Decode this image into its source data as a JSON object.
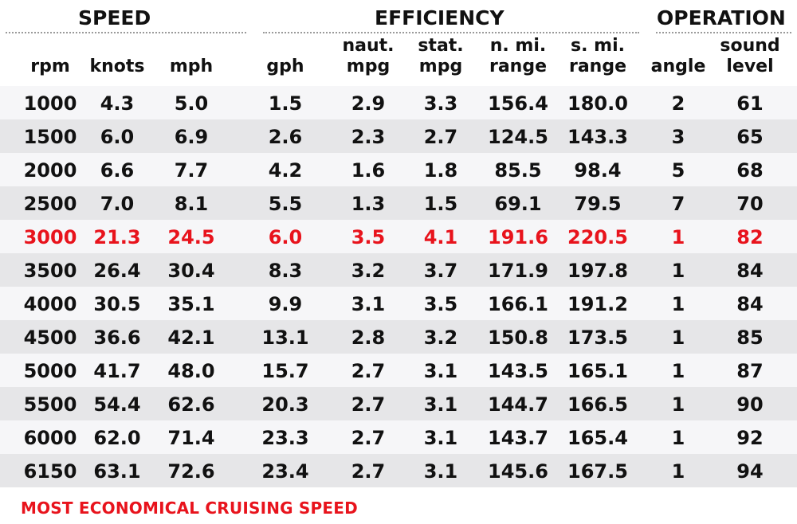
{
  "chart_data": {
    "type": "table",
    "groups": [
      {
        "name": "SPEED",
        "columns": [
          "rpm",
          "knots",
          "mph"
        ]
      },
      {
        "name": "EFFICIENCY",
        "columns": [
          "gph",
          "naut. mpg",
          "stat. mpg",
          "n. mi. range",
          "s. mi. range"
        ]
      },
      {
        "name": "OPERATION",
        "columns": [
          "angle",
          "sound level"
        ]
      }
    ],
    "columns": [
      "rpm",
      "knots",
      "mph",
      "gph",
      "naut. mpg",
      "stat. mpg",
      "n. mi. range",
      "s. mi. range",
      "angle",
      "sound level"
    ],
    "rows": [
      [
        "1000",
        "4.3",
        "5.0",
        "1.5",
        "2.9",
        "3.3",
        "156.4",
        "180.0",
        "2",
        "61"
      ],
      [
        "1500",
        "6.0",
        "6.9",
        "2.6",
        "2.3",
        "2.7",
        "124.5",
        "143.3",
        "3",
        "65"
      ],
      [
        "2000",
        "6.6",
        "7.7",
        "4.2",
        "1.6",
        "1.8",
        "85.5",
        "98.4",
        "5",
        "68"
      ],
      [
        "2500",
        "7.0",
        "8.1",
        "5.5",
        "1.3",
        "1.5",
        "69.1",
        "79.5",
        "7",
        "70"
      ],
      [
        "3000",
        "21.3",
        "24.5",
        "6.0",
        "3.5",
        "4.1",
        "191.6",
        "220.5",
        "1",
        "82"
      ],
      [
        "3500",
        "26.4",
        "30.4",
        "8.3",
        "3.2",
        "3.7",
        "171.9",
        "197.8",
        "1",
        "84"
      ],
      [
        "4000",
        "30.5",
        "35.1",
        "9.9",
        "3.1",
        "3.5",
        "166.1",
        "191.2",
        "1",
        "84"
      ],
      [
        "4500",
        "36.6",
        "42.1",
        "13.1",
        "2.8",
        "3.2",
        "150.8",
        "173.5",
        "1",
        "85"
      ],
      [
        "5000",
        "41.7",
        "48.0",
        "15.7",
        "2.7",
        "3.1",
        "143.5",
        "165.1",
        "1",
        "87"
      ],
      [
        "5500",
        "54.4",
        "62.6",
        "20.3",
        "2.7",
        "3.1",
        "144.7",
        "166.5",
        "1",
        "90"
      ],
      [
        "6000",
        "62.0",
        "71.4",
        "23.3",
        "2.7",
        "3.1",
        "143.7",
        "165.4",
        "1",
        "92"
      ],
      [
        "6150",
        "63.1",
        "72.6",
        "23.4",
        "2.7",
        "3.1",
        "145.6",
        "167.5",
        "1",
        "94"
      ]
    ],
    "highlight_row_index": 4,
    "highlight_color": "#e8131c",
    "footnote": "MOST ECONOMICAL CRUISING SPEED"
  },
  "headers": {
    "groups": {
      "speed": "SPEED",
      "efficiency": "EFFICIENCY",
      "operation": "OPERATION"
    },
    "cols": [
      {
        "l1": "",
        "l2": "rpm"
      },
      {
        "l1": "",
        "l2": "knots"
      },
      {
        "l1": "",
        "l2": "mph"
      },
      {
        "l1": "",
        "l2": "gph"
      },
      {
        "l1": "naut.",
        "l2": "mpg"
      },
      {
        "l1": "stat.",
        "l2": "mpg"
      },
      {
        "l1": "n. mi.",
        "l2": "range"
      },
      {
        "l1": "s. mi.",
        "l2": "range"
      },
      {
        "l1": "",
        "l2": "angle"
      },
      {
        "l1": "sound",
        "l2": "level"
      }
    ]
  },
  "colors": {
    "highlight": "#e8131c",
    "row_light": "#f6f6f8",
    "row_dark": "#e6e6e8"
  }
}
